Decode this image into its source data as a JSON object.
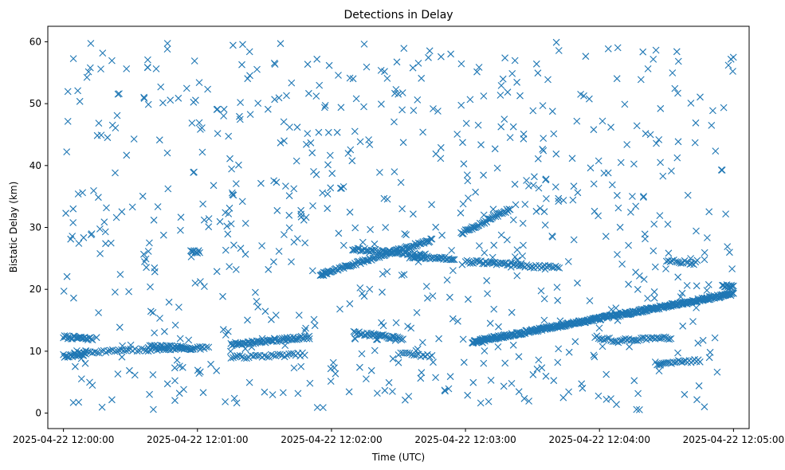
{
  "chart_data": {
    "type": "scatter",
    "title": "Detections in Delay",
    "xlabel": "Time (UTC)",
    "ylabel": "Bistatic Delay (km)",
    "marker": "x",
    "color": "#1f77b4",
    "x_range": [
      "2025-04-22 11:59:53",
      "2025-04-22 12:05:07"
    ],
    "ylim": [
      -2.5,
      62.5
    ],
    "x_ticks": [
      "2025-04-22 12:00:00",
      "2025-04-22 12:01:00",
      "2025-04-22 12:02:00",
      "2025-04-22 12:03:00",
      "2025-04-22 12:04:00",
      "2025-04-22 12:05:00"
    ],
    "y_ticks": [
      0,
      10,
      20,
      30,
      40,
      50,
      60
    ],
    "grid": false,
    "tracks": [
      {
        "start": "2025-04-22 12:00:00",
        "end": "2025-04-22 12:00:13",
        "delay_start": 12.3,
        "delay_end": 12.0,
        "step_seconds": 0.5
      },
      {
        "start": "2025-04-22 12:00:00",
        "end": "2025-04-22 12:00:10",
        "delay_start": 9.2,
        "delay_end": 9.5,
        "step_seconds": 0.5
      },
      {
        "start": "2025-04-22 12:00:05",
        "end": "2025-04-22 12:01:05",
        "delay_start": 9.8,
        "delay_end": 10.6,
        "step_seconds": 1.0
      },
      {
        "start": "2025-04-22 12:00:38",
        "end": "2025-04-22 12:00:58",
        "delay_start": 10.8,
        "delay_end": 10.5,
        "step_seconds": 0.7
      },
      {
        "start": "2025-04-22 12:01:15",
        "end": "2025-04-22 12:01:50",
        "delay_start": 11.1,
        "delay_end": 12.3,
        "step_seconds": 0.5
      },
      {
        "start": "2025-04-22 12:01:15",
        "end": "2025-04-22 12:01:48",
        "delay_start": 9.0,
        "delay_end": 9.5,
        "step_seconds": 1.0
      },
      {
        "start": "2025-04-22 12:01:56",
        "end": "2025-04-22 12:02:45",
        "delay_start": 22.5,
        "delay_end": 28.0,
        "step_seconds": 0.5
      },
      {
        "start": "2025-04-22 12:02:10",
        "end": "2025-04-22 12:02:42",
        "delay_start": 26.5,
        "delay_end": 25.5,
        "step_seconds": 0.6
      },
      {
        "start": "2025-04-22 12:02:35",
        "end": "2025-04-22 12:02:55",
        "delay_start": 25.2,
        "delay_end": 25.0,
        "step_seconds": 0.6
      },
      {
        "start": "2025-04-22 12:02:10",
        "end": "2025-04-22 12:02:32",
        "delay_start": 13.0,
        "delay_end": 12.0,
        "step_seconds": 0.6
      },
      {
        "start": "2025-04-22 12:02:30",
        "end": "2025-04-22 12:02:45",
        "delay_start": 9.6,
        "delay_end": 9.2,
        "step_seconds": 1.0
      },
      {
        "start": "2025-04-22 12:02:58",
        "end": "2025-04-22 12:03:20",
        "delay_start": 29.0,
        "delay_end": 33.0,
        "step_seconds": 0.5
      },
      {
        "start": "2025-04-22 12:03:00",
        "end": "2025-04-22 12:03:25",
        "delay_start": 24.5,
        "delay_end": 24.0,
        "step_seconds": 0.7
      },
      {
        "start": "2025-04-22 12:03:25",
        "end": "2025-04-22 12:03:42",
        "delay_start": 23.8,
        "delay_end": 23.5,
        "step_seconds": 0.8
      },
      {
        "start": "2025-04-22 12:03:03",
        "end": "2025-04-22 12:05:00",
        "delay_start": 11.5,
        "delay_end": 19.3,
        "step_seconds": 0.3
      },
      {
        "start": "2025-04-22 12:03:58",
        "end": "2025-04-22 12:04:10",
        "delay_start": 12.3,
        "delay_end": 11.5,
        "step_seconds": 0.8
      },
      {
        "start": "2025-04-22 12:04:10",
        "end": "2025-04-22 12:04:32",
        "delay_start": 11.8,
        "delay_end": 12.2,
        "step_seconds": 0.8
      },
      {
        "start": "2025-04-22 12:04:25",
        "end": "2025-04-22 12:04:45",
        "delay_start": 8.0,
        "delay_end": 8.5,
        "step_seconds": 0.8
      },
      {
        "start": "2025-04-22 12:04:30",
        "end": "2025-04-22 12:04:43",
        "delay_start": 24.7,
        "delay_end": 24.2,
        "step_seconds": 0.8
      },
      {
        "start": "2025-04-22 12:04:55",
        "end": "2025-04-22 12:05:00",
        "delay_start": 20.5,
        "delay_end": 20.5,
        "step_seconds": 0.5
      },
      {
        "start": "2025-04-22 12:00:57",
        "end": "2025-04-22 12:01:01",
        "delay_start": 26.3,
        "delay_end": 26.0,
        "step_seconds": 0.5
      },
      {
        "start": "2025-04-22 12:01:55",
        "end": "2025-04-22 12:01:58",
        "delay_start": 22.4,
        "delay_end": 22.6,
        "step_seconds": 0.5
      }
    ],
    "clutter": {
      "count": 720,
      "seed": 7,
      "x_min": "2025-04-22 12:00:00",
      "x_max": "2025-04-22 12:05:00",
      "y_min": 0.5,
      "y_max": 60
    }
  }
}
